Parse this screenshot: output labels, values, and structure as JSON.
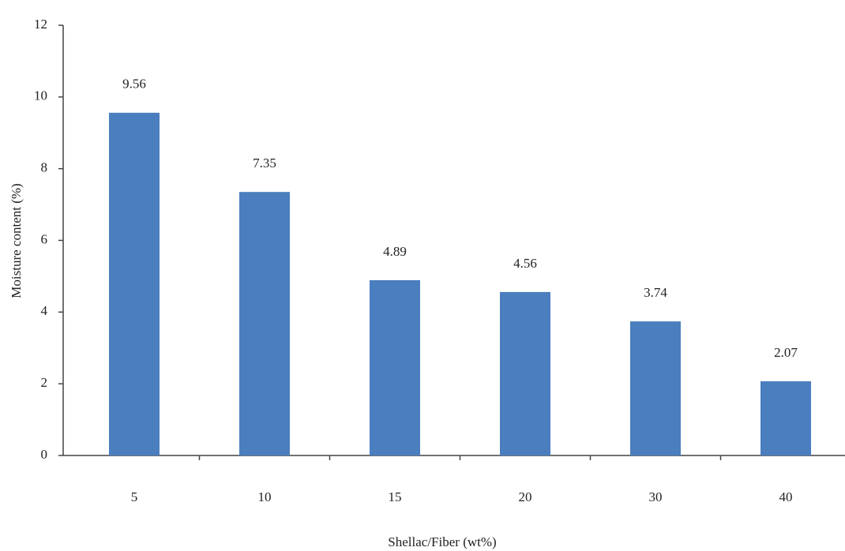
{
  "chart_data": {
    "type": "bar",
    "x_label": "Shellac/Fiber (wt%)",
    "y_label": "Moisture content (%)",
    "categories": [
      "5",
      "10",
      "15",
      "20",
      "30",
      "40"
    ],
    "values": [
      9.56,
      7.35,
      4.89,
      4.56,
      3.74,
      2.07
    ],
    "color": "#4a7ebf",
    "ylim": [
      0,
      12
    ],
    "yticks": [
      0,
      2,
      4,
      6,
      8,
      10,
      12
    ],
    "grid": false
  }
}
